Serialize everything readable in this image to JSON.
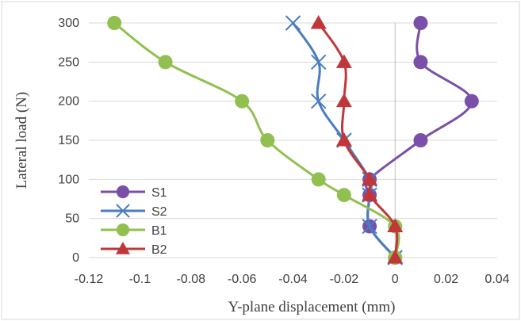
{
  "chart_data": {
    "type": "line",
    "xlabel": "Y-plane displacement (mm)",
    "ylabel": "Lateral load (N)",
    "xlim": [
      -0.12,
      0.04
    ],
    "ylim": [
      0,
      300
    ],
    "x_ticks": [
      "-0.12",
      "-0.1",
      "-0.08",
      "-0.06",
      "-0.04",
      "-0.02",
      "0",
      "0.02",
      "0.04"
    ],
    "y_ticks": [
      "0",
      "50",
      "100",
      "150",
      "200",
      "250",
      "300"
    ],
    "grid": "horizontal",
    "legend_position": "bottom-left",
    "series": [
      {
        "name": "S1",
        "color": "#7b4fa8",
        "marker": "circle",
        "points": [
          [
            0,
            0
          ],
          [
            -0.01,
            40
          ],
          [
            -0.01,
            80
          ],
          [
            -0.01,
            100
          ],
          [
            0.01,
            150
          ],
          [
            0.03,
            200
          ],
          [
            0.01,
            250
          ],
          [
            0.01,
            300
          ]
        ]
      },
      {
        "name": "S2",
        "color": "#4a7cc0",
        "marker": "x",
        "points": [
          [
            0,
            0
          ],
          [
            -0.01,
            40
          ],
          [
            -0.01,
            80
          ],
          [
            -0.01,
            100
          ],
          [
            -0.02,
            150
          ],
          [
            -0.03,
            200
          ],
          [
            -0.03,
            250
          ],
          [
            -0.04,
            300
          ]
        ]
      },
      {
        "name": "B1",
        "color": "#92c050",
        "marker": "circle",
        "points": [
          [
            0,
            0
          ],
          [
            0,
            40
          ],
          [
            -0.02,
            80
          ],
          [
            -0.03,
            100
          ],
          [
            -0.05,
            150
          ],
          [
            -0.06,
            200
          ],
          [
            -0.09,
            250
          ],
          [
            -0.11,
            300
          ]
        ]
      },
      {
        "name": "B2",
        "color": "#c0373a",
        "marker": "triangle",
        "points": [
          [
            0,
            0
          ],
          [
            0,
            40
          ],
          [
            -0.01,
            80
          ],
          [
            -0.01,
            100
          ],
          [
            -0.02,
            150
          ],
          [
            -0.02,
            200
          ],
          [
            -0.02,
            250
          ],
          [
            -0.03,
            300
          ]
        ]
      }
    ]
  }
}
